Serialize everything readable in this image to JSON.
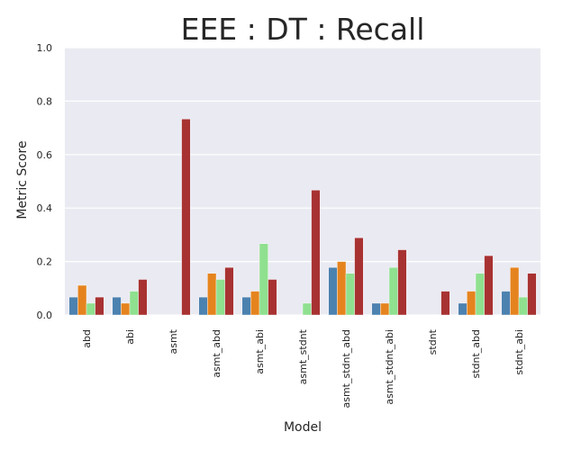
{
  "chart_data": {
    "type": "bar",
    "title": "EEE : DT : Recall",
    "xlabel": "Model",
    "ylabel": "Metric Score",
    "ylim": [
      0,
      1.0
    ],
    "yticks": [
      "0.0",
      "0.2",
      "0.4",
      "0.6",
      "0.8",
      "1.0"
    ],
    "grid": true,
    "legend": "none",
    "categories": [
      "abd",
      "abi",
      "asmt",
      "asmt_abd",
      "asmt_abi",
      "asmt_stdnt",
      "asmt_stdnt_abd",
      "asmt_stdnt_abi",
      "stdnt",
      "stdnt_abd",
      "stdnt_abi"
    ],
    "series": [
      {
        "color": "#4c82b0",
        "values": [
          0.067,
          0.067,
          0.0,
          0.067,
          0.067,
          0.0,
          0.178,
          0.044,
          0.0,
          0.044,
          0.089
        ]
      },
      {
        "color": "#e5841e",
        "values": [
          0.111,
          0.044,
          0.0,
          0.156,
          0.089,
          0.0,
          0.2,
          0.044,
          0.0,
          0.089,
          0.178
        ]
      },
      {
        "color": "#8fe08f",
        "values": [
          0.044,
          0.089,
          0.0,
          0.133,
          0.267,
          0.044,
          0.156,
          0.178,
          0.0,
          0.156,
          0.067
        ]
      },
      {
        "color": "#a83232",
        "values": [
          0.067,
          0.133,
          0.733,
          0.178,
          0.133,
          0.467,
          0.289,
          0.244,
          0.089,
          0.222,
          0.156
        ]
      }
    ]
  }
}
